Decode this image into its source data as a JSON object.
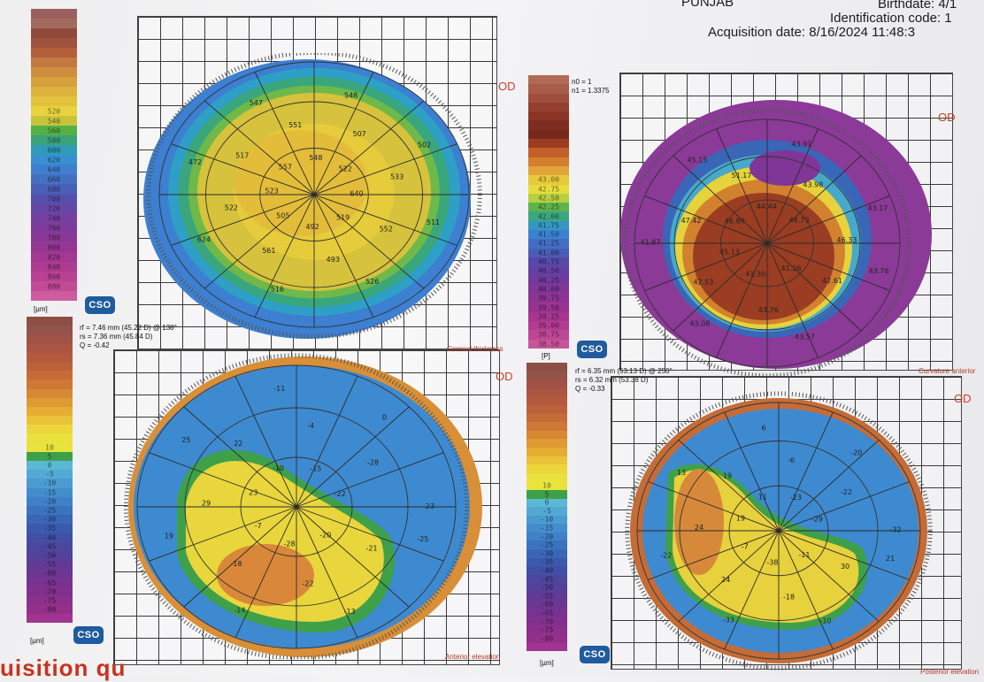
{
  "header": {
    "location": "PUNJAB",
    "birthdate": "Birthdate: 4/1",
    "identification": "Identification code: 1",
    "acquisition": "Acquisition date: 8/16/2024 11:48:3"
  },
  "eye_label": "OD",
  "logo_text": "CSO",
  "unit_label": "[µm]",
  "pi_label": "[P]",
  "maps": [
    {
      "id": "corneal-thickness",
      "title": "Corneal thickness",
      "params": "",
      "values": [
        "511",
        "552",
        "519",
        "526",
        "493",
        "492",
        "516",
        "561",
        "505",
        "624",
        "522",
        "523",
        "472",
        "517",
        "557",
        "547",
        "551",
        "548",
        "548",
        "507",
        "522",
        "502",
        "533",
        "640"
      ]
    },
    {
      "id": "curvature-anterior",
      "title": "Curvature anterior",
      "params": "n0 = 1\nn1 = 1.3375",
      "values": [
        "43.76",
        "42.61",
        "41.26",
        "43.57",
        "43.76",
        "41.30",
        "43.08",
        "42.53",
        "45.13",
        "41.87",
        "47.42",
        "46.80",
        "45.15",
        "51.17",
        "44.44",
        "43.91",
        "43.98",
        "44.79",
        "43.17",
        "46.33"
      ]
    },
    {
      "id": "anterior-elevation",
      "title": "Anterior elevation",
      "params": "rf = 7.46 mm (45.22 D) @ 138°\nrs = 7.36 mm (45.84 D)\nQ = -0.42",
      "values": [
        "-25",
        "-21",
        "-20",
        "-13",
        "-22",
        "-28",
        "-14",
        "-18",
        "-7",
        "19",
        "29",
        "23",
        "25",
        "22",
        "-10",
        "-11",
        "-4",
        "-15",
        "0",
        "-28",
        "-22",
        "-23"
      ]
    },
    {
      "id": "posterior-elevation",
      "title": "Posterior elevation",
      "params": "rf = 6.35 mm (53.13 D) @ 250°\nrs = 6.32 mm (53.38 D)\nQ = -0.33",
      "values": [
        "21",
        "30",
        "-11",
        "-10",
        "-18",
        "-38",
        "-33",
        "24",
        "-7",
        "-22",
        "24",
        "19",
        "13",
        "19",
        "11",
        "6",
        "-6",
        "-23",
        "-20",
        "-22",
        "-29",
        "-32"
      ]
    }
  ],
  "scales": {
    "thickness": [
      "",
      "",
      "",
      "",
      "",
      "",
      "",
      "",
      "",
      "",
      "520",
      "540",
      "560",
      "580",
      "600",
      "620",
      "640",
      "660",
      "680",
      "700",
      "720",
      "740",
      "760",
      "780",
      "800",
      "820",
      "840",
      "860",
      "880",
      ""
    ],
    "curvature": [
      "",
      "",
      "",
      "",
      "",
      "",
      "",
      "",
      "",
      "",
      "",
      "43.00",
      "42.75",
      "42.50",
      "42.25",
      "42.00",
      "41.75",
      "41.50",
      "41.25",
      "41.00",
      "40.75",
      "40.50",
      "40.25",
      "40.00",
      "39.75",
      "39.50",
      "39.25",
      "39.00",
      "38.75",
      "38.50"
    ],
    "elevation_left": [
      "",
      "",
      "",
      "",
      "",
      "",
      "",
      "",
      "",
      "",
      "",
      "",
      "",
      "",
      "10",
      "5",
      "0",
      "-5",
      "-10",
      "-15",
      "-20",
      "-25",
      "-30",
      "-35",
      "-40",
      "-45",
      "-50",
      "-55",
      "-60",
      "-65",
      "-70",
      "-75",
      "-80",
      ""
    ],
    "elevation_right": [
      "",
      "",
      "",
      "",
      "",
      "",
      "",
      "",
      "",
      "",
      "",
      "",
      "",
      "",
      "10",
      "5",
      "0",
      "-5",
      "-10",
      "-15",
      "-20",
      "-25",
      "-30",
      "-35",
      "-40",
      "-45",
      "-50",
      "-55",
      "-60",
      "-65",
      "-70",
      "-75",
      "-80",
      ""
    ]
  },
  "colors": {
    "thickness": [
      "#9a5f5f",
      "#a26a5c",
      "#8e4a3b",
      "#a0523c",
      "#b45f3b",
      "#c27840",
      "#cf8e3f",
      "#d6a03e",
      "#dcb23c",
      "#e4c23d",
      "#e8d33f",
      "#c8c43a",
      "#55b045",
      "#3aa37a",
      "#2f9bb7",
      "#3a8fd0",
      "#3f7fcf",
      "#4470c4",
      "#4a5fb8",
      "#5550ad",
      "#6547a6",
      "#7440a0",
      "#7f3b9b",
      "#8a3896",
      "#963693",
      "#a23891",
      "#ae3b90",
      "#b84292",
      "#c24b96",
      "#ce5b9e"
    ],
    "curvature": [
      "#b06a55",
      "#a95d48",
      "#9e4e3b",
      "#94402f",
      "#8b3527",
      "#7f2c21",
      "#77281c",
      "#9a3d22",
      "#c35f28",
      "#d47f2d",
      "#e0a538",
      "#e8c93c",
      "#e6dd3d",
      "#b8cf3f",
      "#5db44a",
      "#3ca683",
      "#3596c2",
      "#3a82d0",
      "#416fc4",
      "#4a5cb7",
      "#5649aa",
      "#6340a2",
      "#713a9c",
      "#7f3697",
      "#8c3493",
      "#993391",
      "#a63690",
      "#b13c92",
      "#bd4795",
      "#c85599"
    ],
    "elevation": [
      "#8c4e45",
      "#93524a",
      "#a05246",
      "#ab5542",
      "#b35a3e",
      "#bc623a",
      "#c56b37",
      "#ce7835",
      "#d78833",
      "#df9a32",
      "#e6ad33",
      "#eac338",
      "#ecd63c",
      "#e9e23e",
      "#e8e33d",
      "#3fa04a",
      "#5bb8d4",
      "#52aad4",
      "#4a9bd1",
      "#448dcc",
      "#3f80c6",
      "#3b73bf",
      "#3a66b7",
      "#3b59ad",
      "#4150a5",
      "#4a479f",
      "#55409a",
      "#613a96",
      "#6c3692",
      "#77338f",
      "#81318d",
      "#8b308b",
      "#943089",
      "#a23491"
    ]
  }
}
